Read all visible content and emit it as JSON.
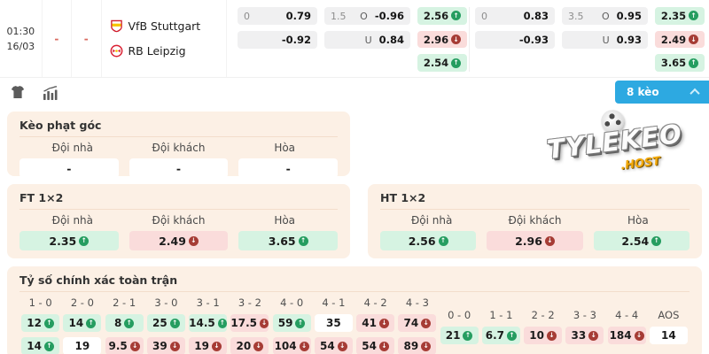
{
  "colors": {
    "accent_blue": "#2da9e1",
    "green_bg": "#d6f3e2",
    "pink_bg": "#fadcdb",
    "arrow_up_green": "#259d60",
    "arrow_down_red": "#a63c35",
    "panel_peach": "#fcf0e5",
    "dash_red": "#d96a5f",
    "watermark_gold": "#f2a90c"
  },
  "fixture": {
    "time": "01:30",
    "date": "16/03",
    "score_home": "-",
    "score_away": "-",
    "home_team": "VfB Stuttgart",
    "away_team": "RB Leipzig",
    "blocks": [
      {
        "hdp": {
          "line": "0",
          "home": "0.79",
          "away": "-0.92"
        },
        "ou": {
          "line": "1.5",
          "over_label": "O",
          "over": "-0.96",
          "under_label": "U",
          "under": "0.84"
        },
        "x12": [
          {
            "v": "2.56",
            "dir": "up"
          },
          {
            "v": "2.96",
            "dir": "down"
          },
          {
            "v": "2.54",
            "dir": "up"
          }
        ]
      },
      {
        "hdp": {
          "line": "0",
          "home": "0.83",
          "away": "-0.93"
        },
        "ou": {
          "line": "3.5",
          "over_label": "O",
          "over": "0.95",
          "under_label": "U",
          "under": "0.93"
        },
        "x12": [
          {
            "v": "2.35",
            "dir": "up"
          },
          {
            "v": "2.49",
            "dir": "down"
          },
          {
            "v": "3.65",
            "dir": "up"
          }
        ]
      }
    ]
  },
  "toolbar": {
    "jersey_icon": "jersey",
    "stats_icon": "stats",
    "odds_count_label": "8 kèo"
  },
  "corner": {
    "title": "Kèo phạt góc",
    "headers": [
      "Đội nhà",
      "Đội khách",
      "Hòa"
    ],
    "cells": [
      {
        "v": "-",
        "dir": ""
      },
      {
        "v": "-",
        "dir": ""
      },
      {
        "v": "-",
        "dir": ""
      }
    ]
  },
  "ft": {
    "title": "FT 1×2",
    "headers": [
      "Đội nhà",
      "Đội khách",
      "Hòa"
    ],
    "cells": [
      {
        "v": "2.35",
        "dir": "up"
      },
      {
        "v": "2.49",
        "dir": "down"
      },
      {
        "v": "3.65",
        "dir": "up"
      }
    ]
  },
  "ht": {
    "title": "HT 1×2",
    "headers": [
      "Đội nhà",
      "Đội khách",
      "Hòa"
    ],
    "cells": [
      {
        "v": "2.56",
        "dir": "up"
      },
      {
        "v": "2.96",
        "dir": "down"
      },
      {
        "v": "2.54",
        "dir": "up"
      }
    ]
  },
  "correct_score": {
    "title": "Tỷ số chính xác toàn trận",
    "score_cols": [
      {
        "label": "1 - 0",
        "top": {
          "v": "12",
          "dir": "up"
        },
        "bottom": {
          "v": "14",
          "dir": "up"
        }
      },
      {
        "label": "2 - 0",
        "top": {
          "v": "14",
          "dir": "up"
        },
        "bottom": {
          "v": "19",
          "dir": ""
        }
      },
      {
        "label": "2 - 1",
        "top": {
          "v": "8",
          "dir": "up"
        },
        "bottom": {
          "v": "9.5",
          "dir": "down"
        }
      },
      {
        "label": "3 - 0",
        "top": {
          "v": "25",
          "dir": "up"
        },
        "bottom": {
          "v": "39",
          "dir": "down"
        }
      },
      {
        "label": "3 - 1",
        "top": {
          "v": "14.5",
          "dir": "up"
        },
        "bottom": {
          "v": "19",
          "dir": "down"
        }
      },
      {
        "label": "3 - 2",
        "top": {
          "v": "17.5",
          "dir": "down"
        },
        "bottom": {
          "v": "20",
          "dir": "down"
        }
      },
      {
        "label": "4 - 0",
        "top": {
          "v": "59",
          "dir": "up"
        },
        "bottom": {
          "v": "104",
          "dir": "down"
        }
      },
      {
        "label": "4 - 1",
        "top": {
          "v": "35",
          "dir": ""
        },
        "bottom": {
          "v": "54",
          "dir": "down"
        }
      },
      {
        "label": "4 - 2",
        "top": {
          "v": "41",
          "dir": "down"
        },
        "bottom": {
          "v": "54",
          "dir": "down"
        }
      },
      {
        "label": "4 - 3",
        "top": {
          "v": "74",
          "dir": "down"
        },
        "bottom": {
          "v": "89",
          "dir": "down"
        }
      }
    ],
    "draw_cols": [
      {
        "label": "0 - 0",
        "val": {
          "v": "21",
          "dir": "up"
        }
      },
      {
        "label": "1 - 1",
        "val": {
          "v": "6.7",
          "dir": "up"
        }
      },
      {
        "label": "2 - 2",
        "val": {
          "v": "10",
          "dir": "down"
        }
      },
      {
        "label": "3 - 3",
        "val": {
          "v": "33",
          "dir": "down"
        }
      },
      {
        "label": "4 - 4",
        "val": {
          "v": "184",
          "dir": "down"
        }
      },
      {
        "label": "AOS",
        "val": {
          "v": "14",
          "dir": ""
        }
      }
    ]
  },
  "watermark": {
    "line1": "TYLEKEO",
    "line2": ".HOST"
  }
}
